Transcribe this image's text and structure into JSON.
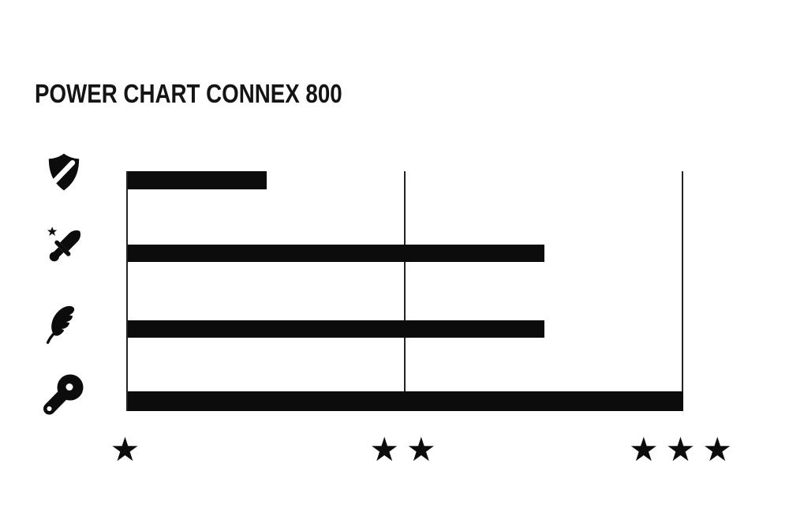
{
  "chart_data": {
    "type": "bar",
    "orientation": "horizontal",
    "title": "POWER CHART CONNEX 800",
    "categories": [
      "shield",
      "dagger",
      "feather",
      "chain-drive"
    ],
    "values": [
      1.5,
      2.5,
      2.5,
      3.0
    ],
    "value_unit": "stars",
    "xlabel": "",
    "ylabel": "",
    "xlim": [
      1,
      3
    ],
    "x_ticks": [
      1,
      2,
      3
    ],
    "x_tick_labels": [
      "★",
      "★★",
      "★★★"
    ],
    "grid": "vertical gridlines at each star tick",
    "legend": "none",
    "row_icons": [
      "shield-icon",
      "dagger-star-icon",
      "feather-icon",
      "chain-drive-icon"
    ],
    "colors": {
      "bar": "#0c0c0c",
      "gridline": "#242424",
      "text": "#141414",
      "background": "#ffffff"
    }
  }
}
